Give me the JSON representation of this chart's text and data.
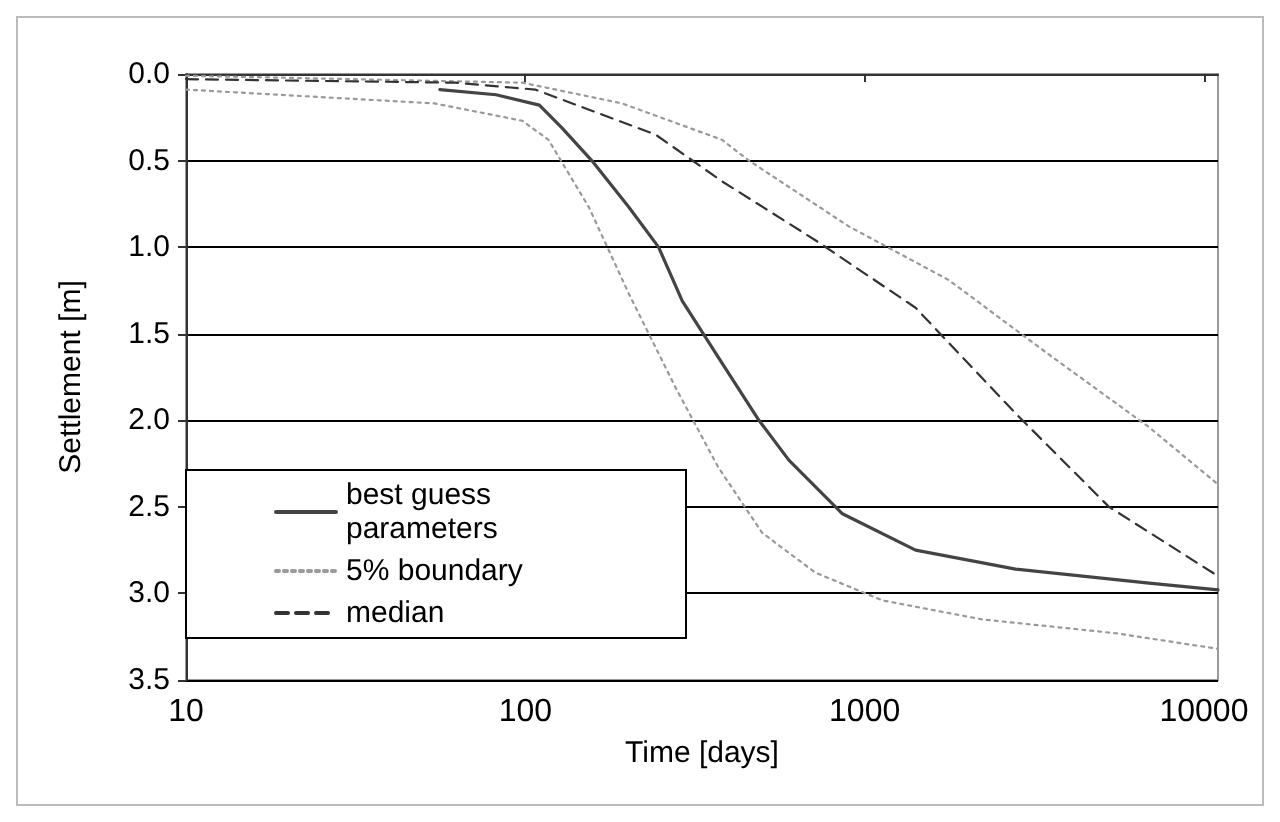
{
  "chart_data": {
    "type": "line",
    "xlabel": "Time [days]",
    "ylabel": "Settlement [m]",
    "xlim": [
      10,
      11000
    ],
    "xticks": [
      10,
      100,
      1000,
      10000
    ],
    "ylim": [
      3.5,
      0
    ],
    "yticks": [
      {
        "value": 0,
        "label": "0.0"
      },
      {
        "value": 0.5,
        "label": "0.5"
      },
      {
        "value": 1,
        "label": "1.0"
      },
      {
        "value": 1.5,
        "label": "1.5"
      },
      {
        "value": 2,
        "label": "2.0"
      },
      {
        "value": 2.5,
        "label": "2.5"
      },
      {
        "value": 3,
        "label": "3.0"
      },
      {
        "value": 3.5,
        "label": "3.5"
      }
    ],
    "log": "x",
    "grid": "y",
    "legend": "bottom left",
    "marker": "none",
    "series": [
      {
        "name": "best guess parameters",
        "color": "#444444",
        "line_style": "solid",
        "x": [
          56,
          82,
          110,
          128,
          157,
          202,
          247,
          290,
          380,
          488,
          598,
          860,
          1413,
          2785,
          6890,
          11000
        ],
        "values": [
          0.09,
          0.12,
          0.18,
          0.31,
          0.5,
          0.77,
          1.0,
          1.31,
          1.67,
          2.0,
          2.23,
          2.54,
          2.75,
          2.86,
          2.94,
          2.98
        ]
      },
      {
        "name": "5% boundary",
        "color": "#999999",
        "line_style": "dotted",
        "x": [
          10,
          98,
          193,
          380,
          456,
          898,
          1770,
          3490,
          6890,
          11000
        ],
        "values": [
          0.01,
          0.05,
          0.17,
          0.38,
          0.5,
          0.88,
          1.19,
          1.62,
          2.04,
          2.37
        ]
      },
      {
        "color": "#999999",
        "line_style": "dotted",
        "x": [
          10,
          54,
          98,
          117,
          154,
          202,
          277,
          370,
          499,
          716,
          1127,
          2223,
          5500,
          11000
        ],
        "values": [
          0.09,
          0.17,
          0.27,
          0.38,
          0.77,
          1.27,
          1.81,
          2.27,
          2.65,
          2.88,
          3.04,
          3.15,
          3.23,
          3.32
        ]
      },
      {
        "name": "median",
        "color": "#333333",
        "line_style": "dashed",
        "x": [
          10,
          62,
          107,
          242,
          380,
          716,
          1413,
          2785,
          5250,
          11000
        ],
        "values": [
          0.03,
          0.05,
          0.09,
          0.35,
          0.62,
          0.96,
          1.35,
          1.96,
          2.5,
          2.9
        ]
      }
    ]
  }
}
